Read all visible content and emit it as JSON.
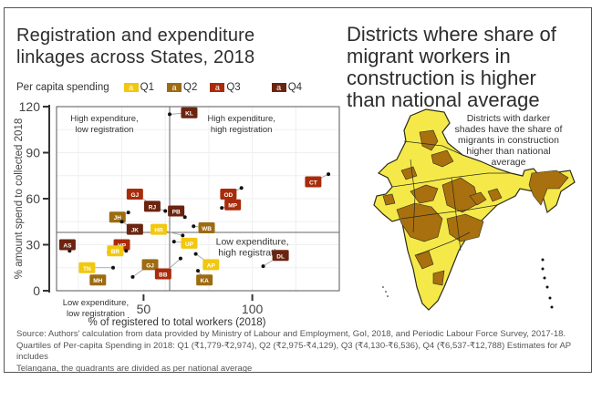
{
  "left_panel": {
    "title_line1": "Registration and expenditure",
    "title_line2": "linkages across States, 2018"
  },
  "right_panel": {
    "title_lines": [
      "Districts where share of",
      "migrant workers in",
      "construction is higher",
      "than national average"
    ],
    "map_note_lines": [
      "Districts with darker",
      "shades have the share of",
      "migrants in construction",
      "higher than national",
      "average"
    ],
    "map_colors": {
      "light": "#f5e94a",
      "dark": "#a8700f",
      "border": "#2b2b1a"
    }
  },
  "legend": {
    "title": "Per capita spending",
    "swatch_glyph": "a",
    "items": [
      {
        "label": "Q1",
        "color": "#f2c80f"
      },
      {
        "label": "Q2",
        "color": "#9c6b12"
      },
      {
        "label": "Q3",
        "color": "#a82c0c"
      },
      {
        "label": "Q4",
        "color": "#6b2410"
      }
    ]
  },
  "source": {
    "line1": "Source: Authors' calculation from data provided by Ministry of Labour and Employment, GoI, 2018, and Periodic Labour Force Survey, 2017-18.",
    "line2": "Quartiles of Per-capita Spending in 2018: Q1 (₹1,779-₹2,974), Q2 (₹2,975-₹4,129), Q3 (₹4,130-₹6,536), Q4 (₹6,537-₹12,788)  Estimates for AP includes",
    "line3": "Telangana, the quadrants are divided as per national average"
  },
  "chart_data": {
    "type": "scatter",
    "title": "Registration and expenditure linkages across States, 2018",
    "xlabel": "% of registered to total workers (2018)",
    "ylabel": "% amount spend to collected 2018",
    "xlim": [
      10,
      140
    ],
    "ylim": [
      0,
      120
    ],
    "xticks": [
      50,
      100
    ],
    "yticks": [
      0,
      30,
      60,
      90,
      120
    ],
    "grid": true,
    "legend_position": "top",
    "reference_lines": {
      "x": 62,
      "y": 38
    },
    "quadrant_labels": [
      {
        "text_lines": [
          "High expenditure,",
          "low registration"
        ],
        "quadrant": "top-left"
      },
      {
        "text_lines": [
          "High expenditure,",
          "high registration"
        ],
        "quadrant": "top-right"
      },
      {
        "text_lines": [
          "Low expenditure,",
          "high registration"
        ],
        "quadrant": "bottom-right"
      },
      {
        "text_lines": [
          "Low expenditure,",
          "low registration"
        ],
        "quadrant": "bottom-left"
      }
    ],
    "points": [
      {
        "label": "KL",
        "x": 62,
        "y": 115,
        "quartile": "Q4",
        "lx": 71,
        "ly": 116
      },
      {
        "label": "CT",
        "x": 135,
        "y": 76,
        "quartile": "Q3",
        "lx": 128,
        "ly": 71
      },
      {
        "label": "OD",
        "x": 95,
        "y": 67,
        "quartile": "Q3",
        "lx": 89,
        "ly": 63
      },
      {
        "label": "MP",
        "x": 86,
        "y": 54,
        "quartile": "Q3",
        "lx": 91,
        "ly": 56
      },
      {
        "label": "PB",
        "x": 69,
        "y": 48,
        "quartile": "Q4",
        "lx": 65,
        "ly": 52
      },
      {
        "label": "WB",
        "x": 73,
        "y": 42,
        "quartile": "Q2",
        "lx": 79,
        "ly": 41
      },
      {
        "label": "GJ",
        "x": 53,
        "y": 57,
        "quartile": "Q3",
        "lx": 46,
        "ly": 63
      },
      {
        "label": "RJ",
        "x": 60,
        "y": 52,
        "quartile": "Q4",
        "lx": 54,
        "ly": 55
      },
      {
        "label": "JH",
        "x": 43,
        "y": 51,
        "quartile": "Q2",
        "lx": 38,
        "ly": 48
      },
      {
        "label": "JK",
        "x": 40,
        "y": 45,
        "quartile": "Q4",
        "lx": 46,
        "ly": 40
      },
      {
        "label": "HR",
        "x": 68,
        "y": 36,
        "quartile": "Q1",
        "lx": 57,
        "ly": 40
      },
      {
        "label": "UP",
        "x": 64,
        "y": 32,
        "quartile": "Q1",
        "lx": 71,
        "ly": 31
      },
      {
        "label": "AS",
        "x": 16,
        "y": 26,
        "quartile": "Q4",
        "lx": 15,
        "ly": 30
      },
      {
        "label": "HP",
        "x": 34,
        "y": 25,
        "quartile": "Q3",
        "lx": 40,
        "ly": 30
      },
      {
        "label": "BR",
        "x": 42,
        "y": 26,
        "quartile": "Q1",
        "lx": 37,
        "ly": 26
      },
      {
        "label": "AP",
        "x": 74,
        "y": 24,
        "quartile": "Q1",
        "lx": 81,
        "ly": 17
      },
      {
        "label": "TN",
        "x": 36,
        "y": 15,
        "quartile": "Q1",
        "lx": 24,
        "ly": 15
      },
      {
        "label": "GJ",
        "x": 45,
        "y": 9,
        "quartile": "Q2",
        "lx": 53,
        "ly": 17
      },
      {
        "label": "BB",
        "x": 67,
        "y": 21,
        "quartile": "Q3",
        "lx": 59,
        "ly": 11
      },
      {
        "label": "KA",
        "x": 75,
        "y": 13,
        "quartile": "Q2",
        "lx": 78,
        "ly": 7
      },
      {
        "label": "MH",
        "x": 31,
        "y": 6,
        "quartile": "Q2",
        "lx": 29,
        "ly": 7
      },
      {
        "label": "DL",
        "x": 105,
        "y": 16,
        "quartile": "Q4",
        "lx": 113,
        "ly": 23
      }
    ]
  }
}
